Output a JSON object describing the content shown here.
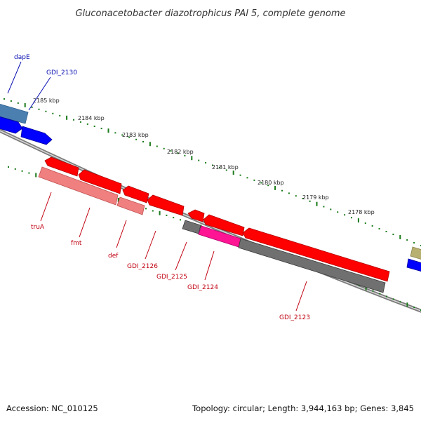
{
  "title": "Gluconacetobacter diazotrophicus PAl 5, complete genome",
  "footer": {
    "accession": "Accession: NC_010125",
    "topology": "Topology: circular; Length: 3,944,163 bp; Genes: 3,845"
  },
  "scale_ticks": [
    "2185 kbp",
    "2184 kbp",
    "2183 kbp",
    "2182 kbp",
    "2181 kbp",
    "2180 kbp",
    "2179 kbp",
    "2178 kbp"
  ],
  "gene_labels_top": [
    "dapE",
    "GDI_2130"
  ],
  "gene_labels_bottom": [
    "truA",
    "fmt",
    "def",
    "GDI_2126",
    "GDI_2125",
    "GDI_2124",
    "GDI_2123"
  ],
  "colors": {
    "label_blue": "#0a10b0",
    "label_red": "#c00010",
    "tick_green": "#1a7a1a",
    "red": "#ff0000",
    "pink": "#f08080",
    "magenta": "#ff1493",
    "gray": "#707070",
    "blue": "#0000ff",
    "steel": "#4a7fb0",
    "olive": "#b8b070"
  }
}
